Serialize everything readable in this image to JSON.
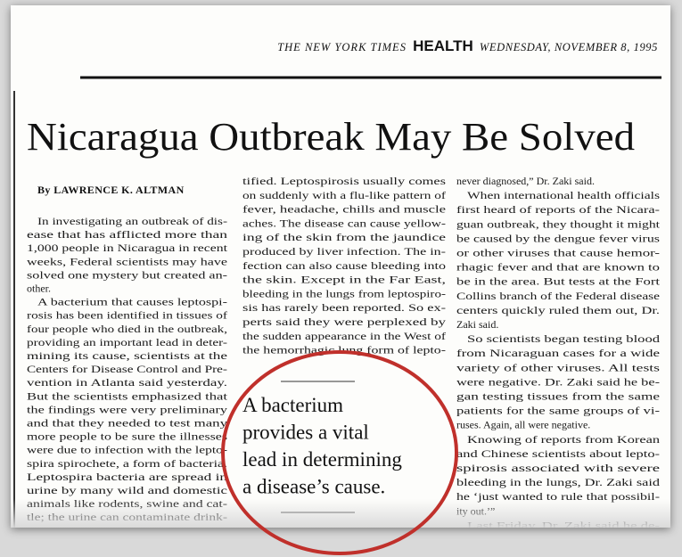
{
  "header": {
    "paper": "THE NEW YORK TIMES",
    "section": "HEALTH",
    "date": "WEDNESDAY, NOVEMBER 8, 1995"
  },
  "article": {
    "headline": "Nicaragua Outbreak May Be Solved",
    "byline": "By LAWRENCE K. ALTMAN",
    "columns": [
      {
        "paragraphs": [
          [
            "In investigating an outbreak of dis-",
            "ease that has afflicted more than",
            "1,000 people in Nicaragua in recent",
            "weeks, Federal scientists may have",
            "solved one mystery but created an-",
            "other."
          ],
          [
            "A bacterium that causes leptospi-",
            "rosis has been identified in tissues of",
            "four people who died in the outbreak,",
            "providing an important lead in deter-",
            "mining its cause, scientists at the",
            "Centers for Disease Control and Pre-",
            "vention in Atlanta said yesterday.",
            "But the scientists emphasized that",
            "the findings were very preliminary",
            "and that they needed to test many",
            "more people to be sure the illnesses",
            "were due to infection with the lepto-",
            "spira spirochete, a form of bacteria.",
            "Leptospira bacteria are spread in",
            "urine by many wild and domestic",
            "animals like rodents, swine and cat-",
            "tle; the urine can contaminate drink-"
          ]
        ]
      },
      {
        "paragraphs": [
          [
            "tified. Leptospirosis usually comes",
            "on suddenly with a flu-like pattern of",
            "fever, headache, chills and muscle",
            "aches. The disease can cause yellow-",
            "ing of the skin from the jaundice",
            "produced by liver infection. The in-",
            "fection can also cause bleeding into",
            "the skin. Except in the Far East,",
            "bleeding in the lungs from leptospiro-",
            "sis has rarely been reported. So ex-",
            "perts said they were perplexed by",
            "the sudden appearance in the West of",
            "the hemorrhagic lung form of lepto-"
          ]
        ]
      },
      {
        "paragraphs": [
          [
            "never diagnosed,” Dr. Zaki said."
          ],
          [
            "When international health officials",
            "first heard of reports of the Nicara-",
            "guan outbreak, they thought it might",
            "be caused by the dengue fever virus",
            "or other viruses that cause hemor-",
            "rhagic fever and that are known to",
            "be in the area. But tests at the Fort",
            "Collins branch of the Federal disease",
            "centers quickly ruled them out, Dr.",
            "Zaki said."
          ],
          [
            "So scientists began testing blood",
            "from Nicaraguan cases for a wide",
            "variety of other viruses. All tests",
            "were negative. Dr. Zaki said he be-",
            "gan testing tissues from the same",
            "patients for the same groups of vi-",
            "ruses. Again, all were negative."
          ],
          [
            "Knowing of reports from Korean",
            "and Chinese scientists about lepto-",
            "spirosis associated with severe",
            "bleeding in the lungs, Dr. Zaki said",
            "he ‘just wanted to rule that possibil-",
            "ity out.’”"
          ],
          [
            "Last Friday, Dr. Zaki said he de-",
            "veloped a quick staining test for lep-"
          ]
        ]
      }
    ],
    "pull_quote": [
      "A bacterium",
      "provides a vital",
      "lead in determining",
      "a disease’s cause."
    ]
  }
}
